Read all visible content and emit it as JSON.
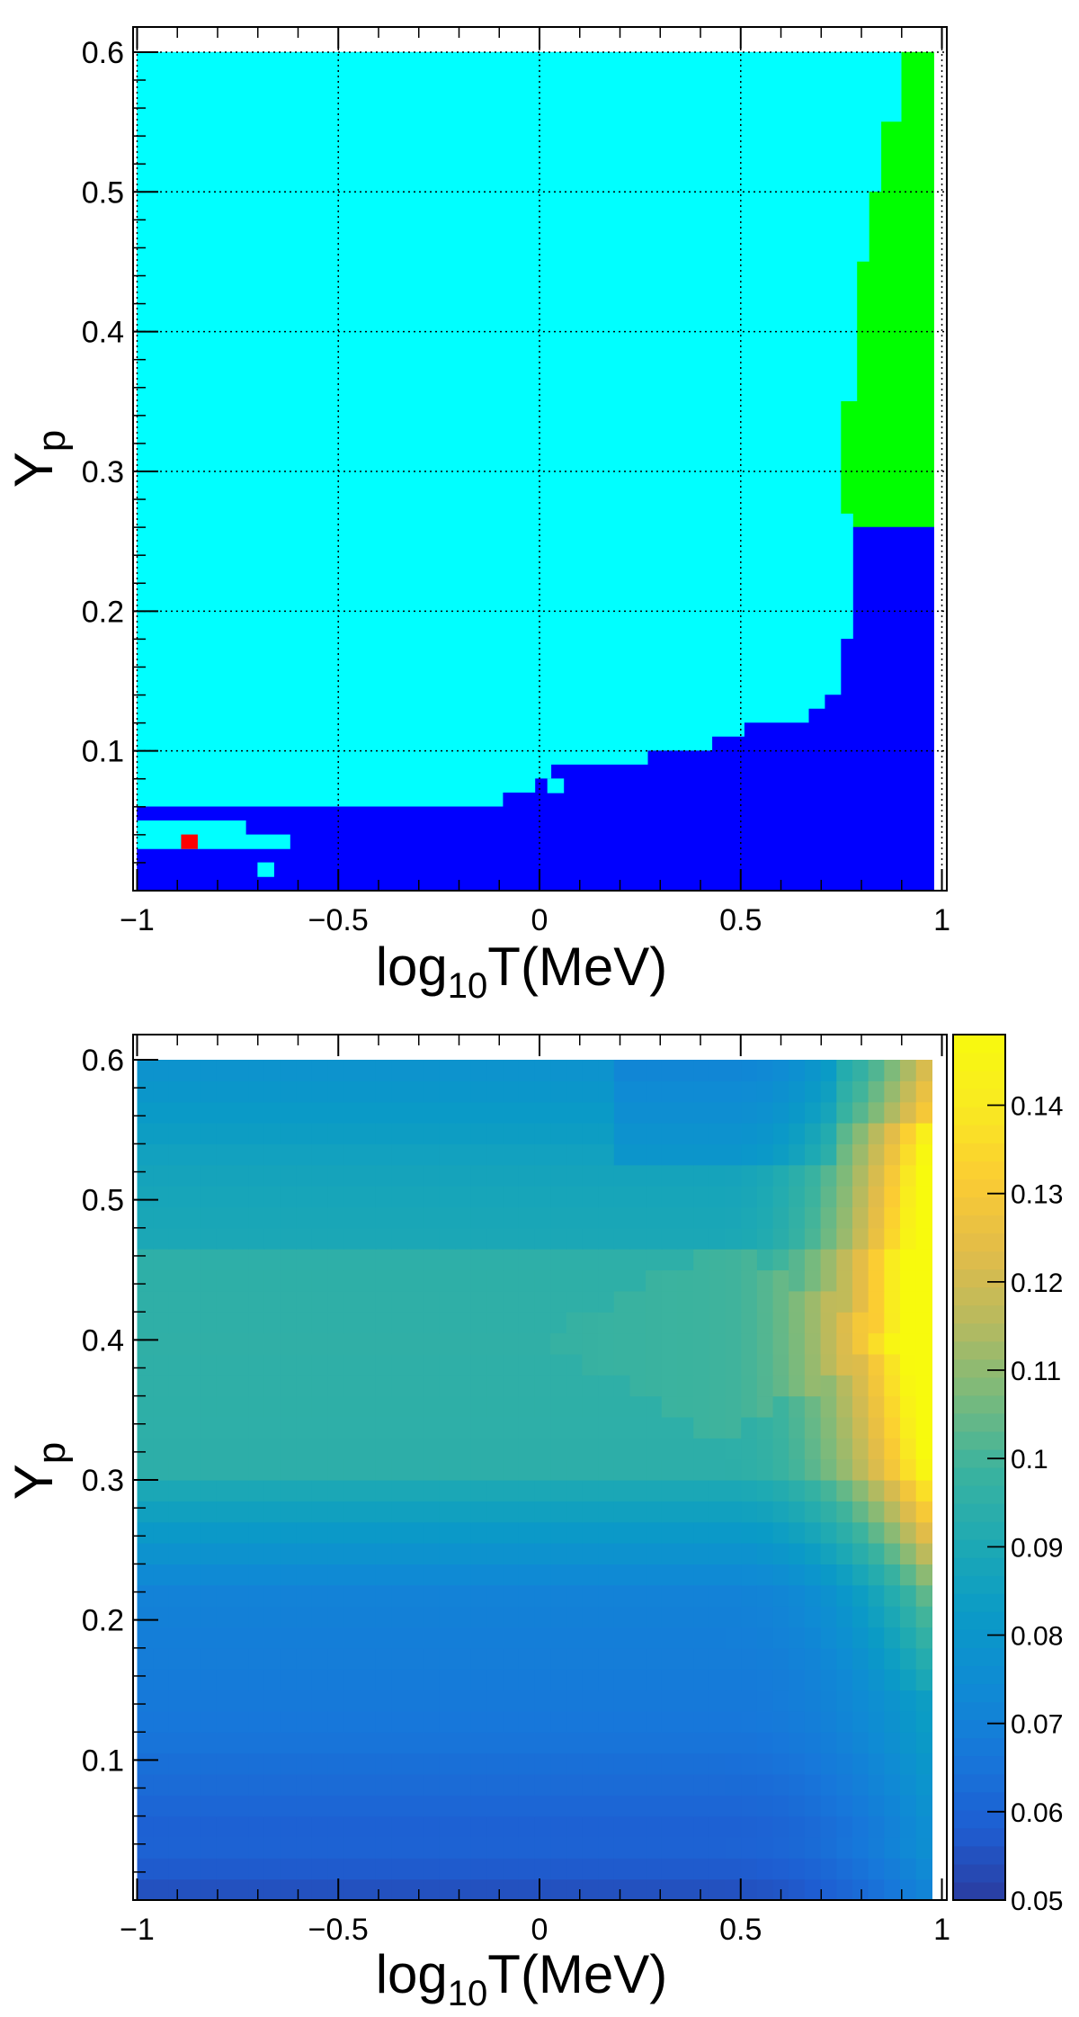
{
  "chart_data": [
    {
      "type": "heatmap",
      "panel": "top",
      "x": {
        "label_base": "log",
        "label_sub": "10",
        "label_rest": "T(MeV)",
        "range": [
          -1.0,
          1.0
        ],
        "ticks": [
          -1,
          -0.5,
          0,
          0.5,
          1
        ],
        "tick_labels": [
          "−1",
          "−0.5",
          "0",
          "0.5",
          "1"
        ]
      },
      "y": {
        "label_base": "Y",
        "label_sub": "p",
        "range": [
          0.0,
          0.6
        ],
        "ticks": [
          0.1,
          0.2,
          0.3,
          0.4,
          0.5,
          0.6
        ],
        "tick_labels": [
          "0.1",
          "0.2",
          "0.3",
          "0.4",
          "0.5",
          "0.6"
        ]
      },
      "grid": true,
      "colors": {
        "cyan": "#00FFFF",
        "blue": "#0000FF",
        "green": "#00FF00",
        "red": "#FF0000"
      },
      "regions": [
        {
          "color": "cyan",
          "polygon": [
            [
              -1.0,
              0.6
            ],
            [
              0.9,
              0.6
            ],
            [
              0.9,
              0.55
            ],
            [
              0.85,
              0.55
            ],
            [
              0.85,
              0.5
            ],
            [
              0.82,
              0.5
            ],
            [
              0.82,
              0.45
            ],
            [
              0.79,
              0.45
            ],
            [
              0.79,
              0.35
            ],
            [
              0.75,
              0.35
            ],
            [
              0.75,
              0.27
            ],
            [
              0.78,
              0.27
            ],
            [
              0.78,
              0.18
            ],
            [
              0.75,
              0.18
            ],
            [
              0.75,
              0.14
            ],
            [
              0.71,
              0.14
            ],
            [
              0.71,
              0.13
            ],
            [
              0.67,
              0.13
            ],
            [
              0.67,
              0.12
            ],
            [
              0.51,
              0.12
            ],
            [
              0.51,
              0.11
            ],
            [
              0.43,
              0.11
            ],
            [
              0.43,
              0.1
            ],
            [
              0.27,
              0.1
            ],
            [
              0.27,
              0.09
            ],
            [
              0.03,
              0.09
            ],
            [
              0.03,
              0.08
            ],
            [
              -0.01,
              0.08
            ],
            [
              -0.01,
              0.07
            ],
            [
              -0.09,
              0.07
            ],
            [
              -0.09,
              0.06
            ],
            [
              -1.0,
              0.06
            ]
          ]
        },
        {
          "color": "green",
          "polygon": [
            [
              0.9,
              0.6
            ],
            [
              0.98,
              0.6
            ],
            [
              0.98,
              0.26
            ],
            [
              0.78,
              0.26
            ],
            [
              0.78,
              0.27
            ],
            [
              0.75,
              0.27
            ],
            [
              0.75,
              0.35
            ],
            [
              0.79,
              0.35
            ],
            [
              0.79,
              0.45
            ],
            [
              0.82,
              0.45
            ],
            [
              0.82,
              0.5
            ],
            [
              0.85,
              0.5
            ],
            [
              0.85,
              0.55
            ],
            [
              0.9,
              0.55
            ]
          ]
        },
        {
          "color": "blue",
          "polygon": [
            [
              -1.0,
              0.0
            ],
            [
              0.98,
              0.0
            ],
            [
              0.98,
              0.26
            ],
            [
              0.78,
              0.26
            ],
            [
              0.78,
              0.18
            ],
            [
              0.75,
              0.18
            ],
            [
              0.75,
              0.14
            ],
            [
              0.71,
              0.14
            ],
            [
              0.71,
              0.13
            ],
            [
              0.67,
              0.13
            ],
            [
              0.67,
              0.12
            ],
            [
              0.51,
              0.12
            ],
            [
              0.51,
              0.11
            ],
            [
              0.43,
              0.11
            ],
            [
              0.43,
              0.1
            ],
            [
              0.27,
              0.1
            ],
            [
              0.27,
              0.09
            ],
            [
              0.03,
              0.09
            ],
            [
              0.03,
              0.08
            ],
            [
              -0.01,
              0.08
            ],
            [
              -0.01,
              0.07
            ],
            [
              -0.09,
              0.07
            ],
            [
              -0.09,
              0.06
            ],
            [
              -1.0,
              0.06
            ]
          ]
        },
        {
          "color": "cyan",
          "polygon": [
            [
              -1.0,
              0.05
            ],
            [
              -0.73,
              0.05
            ],
            [
              -0.73,
              0.04
            ],
            [
              -0.62,
              0.04
            ],
            [
              -0.62,
              0.03
            ],
            [
              -1.0,
              0.03
            ]
          ]
        },
        {
          "color": "cyan",
          "polygon": [
            [
              0.02,
              0.08
            ],
            [
              0.06,
              0.08
            ],
            [
              0.06,
              0.07
            ],
            [
              0.02,
              0.07
            ]
          ]
        },
        {
          "color": "cyan",
          "polygon": [
            [
              -0.7,
              0.02
            ],
            [
              -0.66,
              0.02
            ],
            [
              -0.66,
              0.01
            ],
            [
              -0.7,
              0.01
            ]
          ]
        },
        {
          "color": "red",
          "polygon": [
            [
              -0.89,
              0.04
            ],
            [
              -0.85,
              0.04
            ],
            [
              -0.85,
              0.03
            ],
            [
              -0.89,
              0.03
            ]
          ]
        }
      ]
    },
    {
      "type": "heatmap",
      "panel": "bottom",
      "x": {
        "label_base": "log",
        "label_sub": "10",
        "label_rest": "T(MeV)",
        "range": [
          -1.0,
          1.0
        ],
        "ticks": [
          -1,
          -0.5,
          0,
          0.5,
          1
        ],
        "tick_labels": [
          "−1",
          "−0.5",
          "0",
          "0.5",
          "1"
        ]
      },
      "y": {
        "label_base": "Y",
        "label_sub": "p",
        "range": [
          0.0,
          0.6
        ],
        "ticks": [
          0.1,
          0.2,
          0.3,
          0.4,
          0.5,
          0.6
        ],
        "tick_labels": [
          "0.1",
          "0.2",
          "0.3",
          "0.4",
          "0.5",
          "0.6"
        ]
      },
      "grid": false,
      "x_bins": 50,
      "y_bins": 40,
      "x_data_max": 0.975,
      "colorbar": {
        "range": [
          0.05,
          0.148
        ],
        "ticks": [
          0.05,
          0.06,
          0.07,
          0.08,
          0.09,
          0.1,
          0.11,
          0.12,
          0.13,
          0.14
        ],
        "tick_labels": [
          "0.05",
          "0.06",
          "0.07",
          "0.08",
          "0.09",
          "0.1",
          "0.11",
          "0.12",
          "0.13",
          "0.14"
        ],
        "palette": [
          "#2B3CA0",
          "#1E5ED2",
          "#1777DA",
          "#0F8BD4",
          "#0A9BC6",
          "#1FAAB2",
          "#3CB39E",
          "#7ABA7C",
          "#B6BA5F",
          "#E2BC49",
          "#FBCC33",
          "#F9EA21",
          "#F8FA0D"
        ]
      },
      "field_description": "Values about 0.09-0.1 in middle band (Yp 0.28-0.50) at low T, decreasing to about 0.065 near Yp 0.2 and about 0.055 near Yp 0; wedge of ~0.1 narrowing toward log10T 0.85; maximum ~0.148 at log10T 0.8-0.97, Yp 0.4-0.6."
    }
  ]
}
